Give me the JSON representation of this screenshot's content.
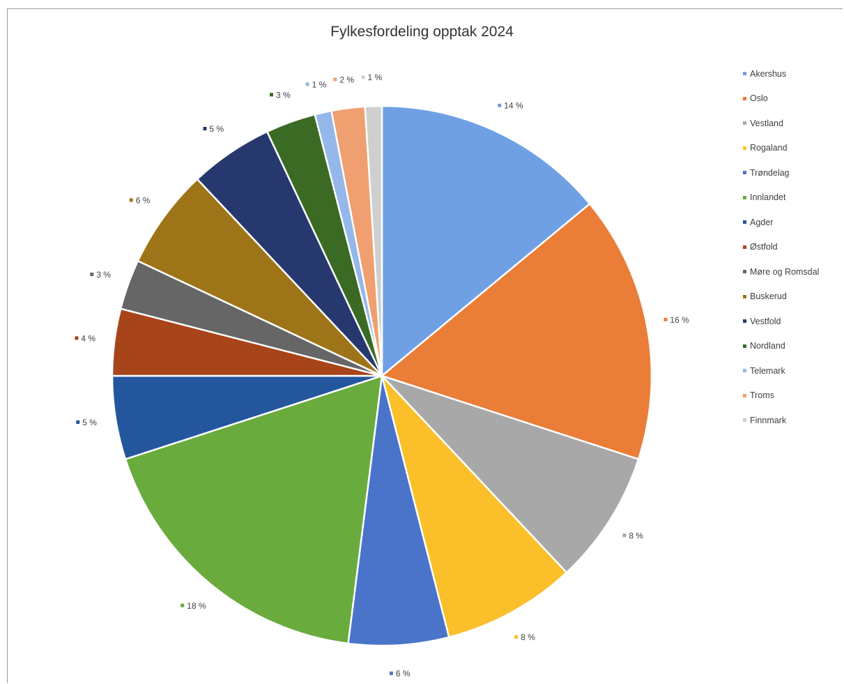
{
  "chart_data": {
    "type": "pie",
    "title": "Fylkesfordeling opptak 2024",
    "legend_position": "right",
    "slices": [
      {
        "label": "Akershus",
        "value": 14,
        "display": "14 %",
        "color": "#6fa0e4"
      },
      {
        "label": "Oslo",
        "value": 16,
        "display": "16 %",
        "color": "#ea7d37"
      },
      {
        "label": "Vestland",
        "value": 8,
        "display": "8 %",
        "color": "#a8a8a8"
      },
      {
        "label": "Rogaland",
        "value": 8,
        "display": "8 %",
        "color": "#fbbf2a"
      },
      {
        "label": "Trøndelag",
        "value": 6,
        "display": "6 %",
        "color": "#4a74c9"
      },
      {
        "label": "Innlandet",
        "value": 18,
        "display": "18 %",
        "color": "#6aab3e"
      },
      {
        "label": "Agder",
        "value": 5,
        "display": "5 %",
        "color": "#24569e"
      },
      {
        "label": "Østfold",
        "value": 4,
        "display": "4 %",
        "color": "#a8441a"
      },
      {
        "label": "Møre og Romsdal",
        "value": 3,
        "display": "3 %",
        "color": "#666666"
      },
      {
        "label": "Buskerud",
        "value": 6,
        "display": "6 %",
        "color": "#9e7418"
      },
      {
        "label": "Vestfold",
        "value": 5,
        "display": "5 %",
        "color": "#26386e"
      },
      {
        "label": "Nordland",
        "value": 3,
        "display": "3 %",
        "color": "#3a6a23"
      },
      {
        "label": "Telemark",
        "value": 1,
        "display": "1 %",
        "color": "#94b8e9"
      },
      {
        "label": "Troms",
        "value": 2,
        "display": "2 %",
        "color": "#f0a070"
      },
      {
        "label": "Finnmark",
        "value": 1,
        "display": "1 %",
        "color": "#cfcfcf"
      }
    ]
  }
}
